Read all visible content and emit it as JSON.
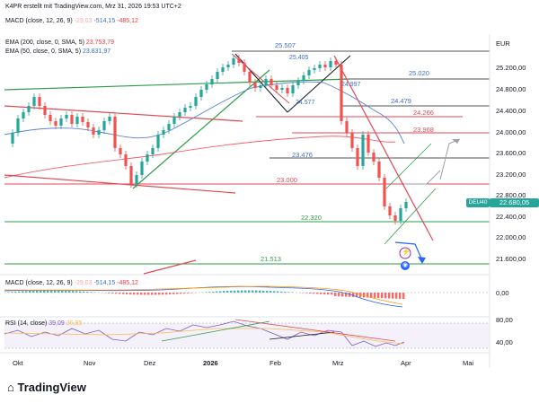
{
  "header": {
    "author_line": "K4PR erstellt mit TradingView.com, Mrz 31, 2026 19:53 UTC+2",
    "macd_top": {
      "name": "MACD (close, 12, 26, 9)",
      "v1": "-29,03",
      "v2": "-514,15",
      "v3": "-485,12"
    },
    "ema200": {
      "name": "EMA (200, close, 0, SMA, 5)",
      "value": "23.753,79"
    },
    "ema50": {
      "name": "EMA (50, close, 0, SMA, 5)",
      "value": "23.831,97"
    },
    "currency": "EUR"
  },
  "price_axis": [
    "25.200,00",
    "24.800,00",
    "24.400,00",
    "24.000,00",
    "23.600,00",
    "23.200,00",
    "22.800,00",
    "22.400,00",
    "22.000,00",
    "21.600,00"
  ],
  "current_price": {
    "symbol": "DEU40",
    "value": "22.680,05"
  },
  "levels": [
    "25.507",
    "25.020",
    "24.479",
    "24.266",
    "23.968",
    "23.476",
    "23.000",
    "22.320",
    "21.513"
  ],
  "small_levels": [
    "25.405",
    "24.997",
    "24.577"
  ],
  "macd_panel": {
    "name": "MACD (close, 12, 26, 9)",
    "v1": "-29,03",
    "v2": "-514,15",
    "v3": "-485,12",
    "axis": "0,00"
  },
  "rsi_panel": {
    "name": "RSI (14, close)",
    "v1": "39,09",
    "v2": "36,85",
    "axis_top": "80,00",
    "axis_bottom": "40,00"
  },
  "time_axis": [
    "Okt",
    "Nov",
    "Dez",
    "2026",
    "Feb",
    "Mrz",
    "Apr",
    "Mai"
  ],
  "brand": "TradingView",
  "colors": {
    "up": "#26a69a",
    "down": "#ef5350",
    "ema200": "#f23645",
    "ema50": "#5b7fd6",
    "green_line": "#2e9d48",
    "red_line": "#e04a55",
    "blue_text": "#3d6fc4"
  }
}
